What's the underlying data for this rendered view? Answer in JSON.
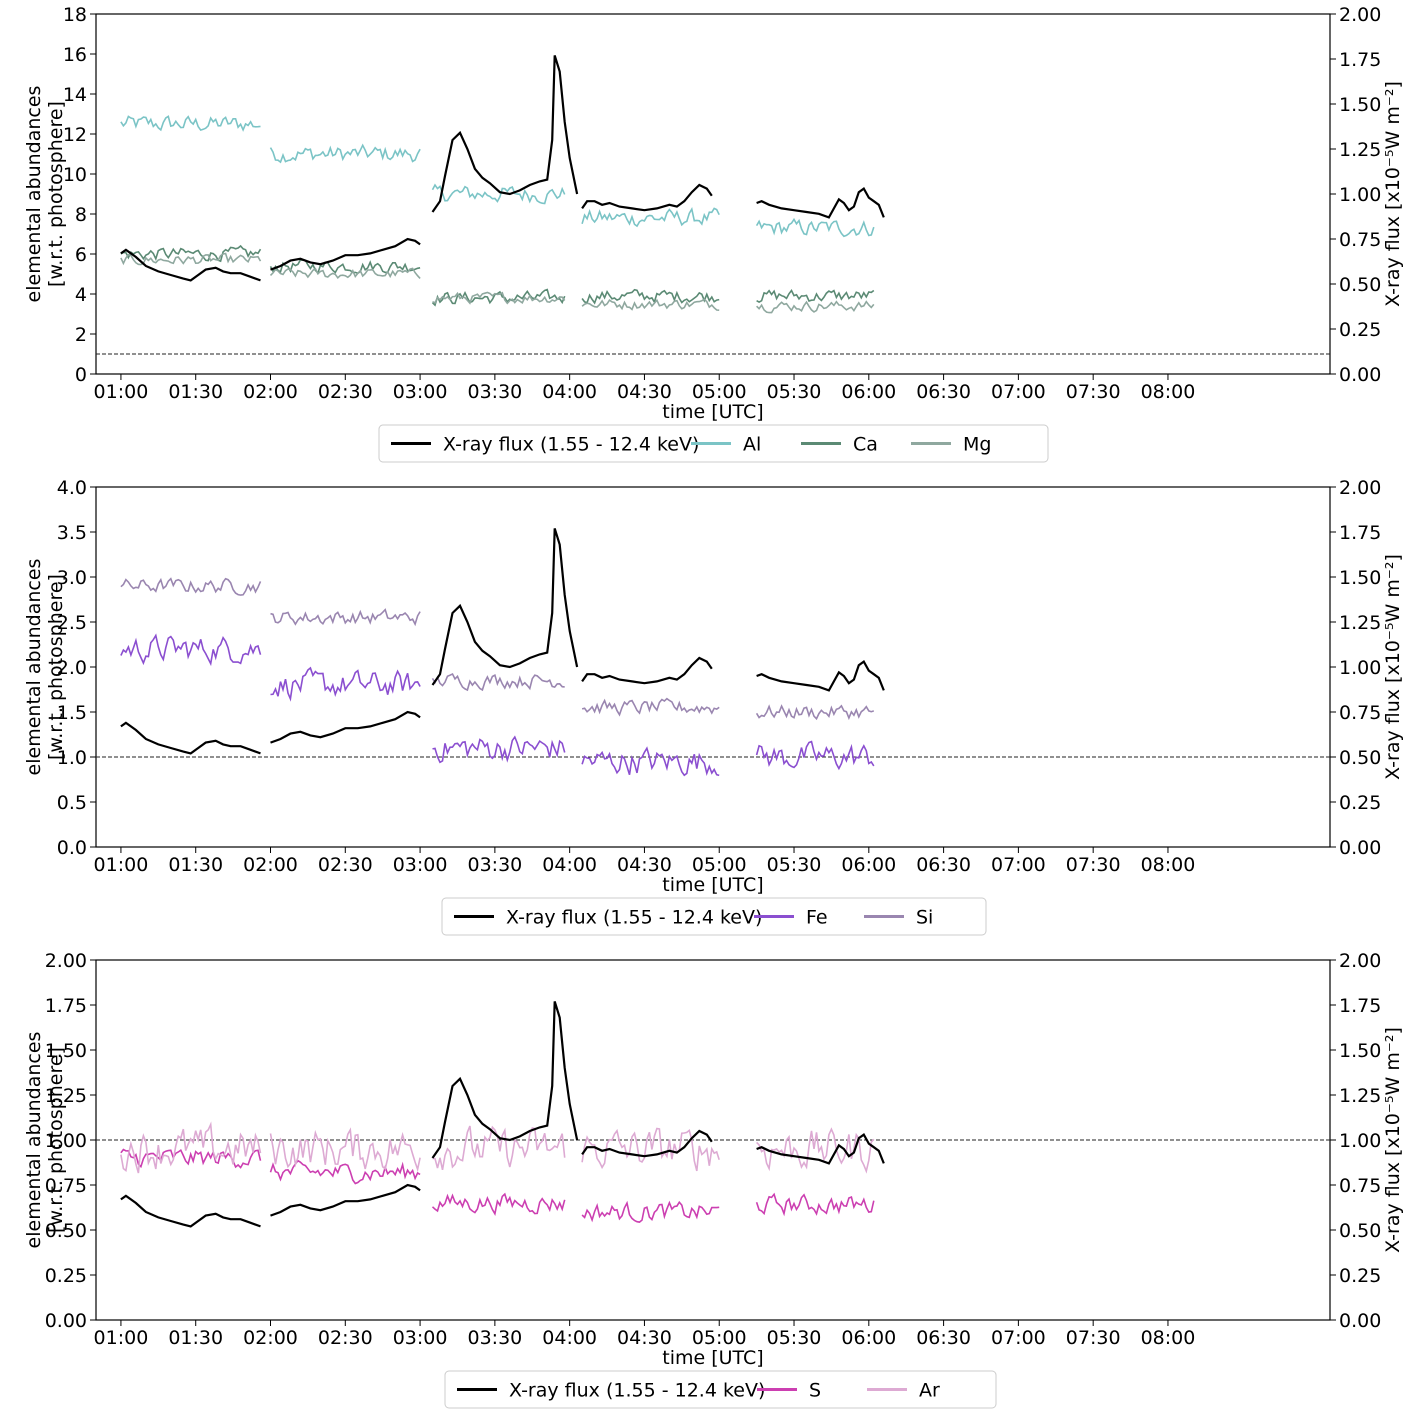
{
  "chart_data": [
    {
      "type": "line",
      "panel": "top",
      "xlabel": "time [UTC]",
      "ylabel_left": [
        "elemental abundances",
        "[w.r.t. photosphere]"
      ],
      "ylabel_right": "X-ray flux [x10⁻⁵W m⁻²]",
      "x_ticks": [
        "01:00",
        "01:30",
        "02:00",
        "02:30",
        "03:00",
        "03:30",
        "04:00",
        "04:30",
        "05:00",
        "05:30",
        "06:00",
        "06:30",
        "07:00",
        "07:30",
        "08:00"
      ],
      "xlim_minutes": [
        50,
        545
      ],
      "ylim_left": [
        0,
        18
      ],
      "yticks_left": [
        "0",
        "2",
        "4",
        "6",
        "8",
        "10",
        "12",
        "14",
        "16",
        "18"
      ],
      "ylim_right": [
        0,
        2
      ],
      "yticks_right": [
        "0.00",
        "0.25",
        "0.50",
        "0.75",
        "1.00",
        "1.25",
        "1.50",
        "1.75",
        "2.00"
      ],
      "reference_line_left": 1.0,
      "legend_position": "bottom-center",
      "segments_minutes": [
        [
          60,
          116
        ],
        [
          120,
          180
        ],
        [
          185,
          238
        ],
        [
          245,
          300
        ],
        [
          315,
          362
        ]
      ],
      "series": [
        {
          "name": "X-ray flux (1.55 - 12.4 keV)",
          "axis": "right",
          "color": "#000000",
          "values": [
            [
              [
                60,
                0.67
              ],
              [
                62,
                0.69
              ],
              [
                64,
                0.67
              ],
              [
                66,
                0.65
              ],
              [
                70,
                0.6
              ],
              [
                75,
                0.57
              ],
              [
                80,
                0.55
              ],
              [
                85,
                0.53
              ],
              [
                88,
                0.52
              ],
              [
                91,
                0.55
              ],
              [
                94,
                0.58
              ],
              [
                98,
                0.59
              ],
              [
                101,
                0.57
              ],
              [
                104,
                0.56
              ],
              [
                108,
                0.56
              ],
              [
                112,
                0.54
              ],
              [
                116,
                0.52
              ]
            ],
            [
              [
                120,
                0.58
              ],
              [
                124,
                0.6
              ],
              [
                128,
                0.63
              ],
              [
                132,
                0.64
              ],
              [
                136,
                0.62
              ],
              [
                140,
                0.61
              ],
              [
                145,
                0.63
              ],
              [
                150,
                0.66
              ],
              [
                155,
                0.66
              ],
              [
                160,
                0.67
              ],
              [
                165,
                0.69
              ],
              [
                170,
                0.71
              ],
              [
                175,
                0.75
              ],
              [
                178,
                0.74
              ],
              [
                180,
                0.72
              ]
            ],
            [
              [
                185,
                0.9
              ],
              [
                188,
                0.96
              ],
              [
                190,
                1.1
              ],
              [
                193,
                1.3
              ],
              [
                196,
                1.34
              ],
              [
                199,
                1.25
              ],
              [
                202,
                1.14
              ],
              [
                205,
                1.09
              ],
              [
                208,
                1.06
              ],
              [
                212,
                1.01
              ],
              [
                216,
                1.0
              ],
              [
                220,
                1.02
              ],
              [
                224,
                1.05
              ],
              [
                228,
                1.07
              ],
              [
                231,
                1.08
              ],
              [
                233,
                1.3
              ],
              [
                234,
                1.77
              ],
              [
                236,
                1.68
              ],
              [
                238,
                1.4
              ],
              [
                240,
                1.2
              ],
              [
                243,
                1.0
              ]
            ],
            [
              [
                245,
                0.92
              ],
              [
                247,
                0.96
              ],
              [
                250,
                0.96
              ],
              [
                253,
                0.94
              ],
              [
                256,
                0.95
              ],
              [
                260,
                0.93
              ],
              [
                265,
                0.92
              ],
              [
                270,
                0.91
              ],
              [
                275,
                0.92
              ],
              [
                280,
                0.94
              ],
              [
                283,
                0.93
              ],
              [
                286,
                0.96
              ],
              [
                289,
                1.01
              ],
              [
                292,
                1.05
              ],
              [
                295,
                1.03
              ],
              [
                297,
                0.99
              ]
            ],
            [
              [
                315,
                0.95
              ],
              [
                317,
                0.96
              ],
              [
                320,
                0.94
              ],
              [
                325,
                0.92
              ],
              [
                330,
                0.91
              ],
              [
                335,
                0.9
              ],
              [
                340,
                0.89
              ],
              [
                344,
                0.87
              ],
              [
                346,
                0.92
              ],
              [
                348,
                0.97
              ],
              [
                350,
                0.95
              ],
              [
                352,
                0.91
              ],
              [
                354,
                0.93
              ],
              [
                356,
                1.01
              ],
              [
                358,
                1.03
              ],
              [
                360,
                0.98
              ],
              [
                362,
                0.96
              ],
              [
                364,
                0.94
              ],
              [
                366,
                0.87
              ]
            ]
          ]
        },
        {
          "name": "Al",
          "axis": "left",
          "color": "#7bc4c6",
          "level": [
            12.5,
            11.0,
            9.0,
            7.8,
            7.3
          ],
          "noise": 1.3
        },
        {
          "name": "Ca",
          "axis": "left",
          "color": "#5b8a74",
          "level": [
            6.0,
            5.4,
            3.8,
            3.9,
            3.9
          ],
          "noise": 1.0
        },
        {
          "name": "Mg",
          "axis": "left",
          "color": "#8fa89f",
          "level": [
            5.7,
            5.0,
            3.8,
            3.5,
            3.4
          ],
          "noise": 0.8
        }
      ]
    },
    {
      "type": "line",
      "panel": "middle",
      "xlabel": "time [UTC]",
      "ylabel_left": [
        "elemental abundances",
        "[w.r.t. photosphere]"
      ],
      "ylabel_right": "X-ray flux [x10⁻⁵W m⁻²]",
      "x_ticks": [
        "01:00",
        "01:30",
        "02:00",
        "02:30",
        "03:00",
        "03:30",
        "04:00",
        "04:30",
        "05:00",
        "05:30",
        "06:00",
        "06:30",
        "07:00",
        "07:30",
        "08:00"
      ],
      "xlim_minutes": [
        50,
        545
      ],
      "ylim_left": [
        0,
        4
      ],
      "yticks_left": [
        "0.0",
        "0.5",
        "1.0",
        "1.5",
        "2.0",
        "2.5",
        "3.0",
        "3.5",
        "4.0"
      ],
      "ylim_right": [
        0,
        2
      ],
      "yticks_right": [
        "0.00",
        "0.25",
        "0.50",
        "0.75",
        "1.00",
        "1.25",
        "1.50",
        "1.75",
        "2.00"
      ],
      "reference_line_left": 1.0,
      "legend_position": "bottom-center",
      "series": [
        {
          "name": "X-ray flux (1.55 - 12.4 keV)",
          "axis": "right",
          "color": "#000000",
          "same_as_top": true
        },
        {
          "name": "Fe",
          "axis": "left",
          "color": "#8b4fd0",
          "level": [
            2.2,
            1.8,
            1.1,
            0.95,
            1.0
          ],
          "noise": 0.45
        },
        {
          "name": "Si",
          "axis": "left",
          "color": "#9a86b0",
          "level": [
            2.9,
            2.55,
            1.85,
            1.55,
            1.5
          ],
          "noise": 0.25
        }
      ]
    },
    {
      "type": "line",
      "panel": "bottom",
      "xlabel": "time [UTC]",
      "ylabel_left": [
        "elemental abundances",
        "[w.r.t. photosphere]"
      ],
      "ylabel_right": "X-ray flux [x10⁻⁵W m⁻²]",
      "x_ticks": [
        "01:00",
        "01:30",
        "02:00",
        "02:30",
        "03:00",
        "03:30",
        "04:00",
        "04:30",
        "05:00",
        "05:30",
        "06:00",
        "06:30",
        "07:00",
        "07:30",
        "08:00"
      ],
      "xlim_minutes": [
        50,
        545
      ],
      "ylim_left": [
        0,
        2
      ],
      "yticks_left": [
        "0.00",
        "0.25",
        "0.50",
        "0.75",
        "1.00",
        "1.25",
        "1.50",
        "1.75",
        "2.00"
      ],
      "ylim_right": [
        0,
        2
      ],
      "yticks_right": [
        "0.00",
        "0.25",
        "0.50",
        "0.75",
        "1.00",
        "1.25",
        "1.50",
        "1.75",
        "2.00"
      ],
      "reference_line_left": 1.0,
      "legend_position": "bottom-center",
      "series": [
        {
          "name": "X-ray flux (1.55 - 12.4 keV)",
          "axis": "right",
          "color": "#000000",
          "same_as_top": true
        },
        {
          "name": "S",
          "axis": "left",
          "color": "#cc3fb1",
          "level": [
            0.9,
            0.82,
            0.65,
            0.6,
            0.64
          ],
          "noise": 0.16
        },
        {
          "name": "Ar",
          "axis": "left",
          "color": "#ddaad3",
          "level": [
            0.95,
            0.95,
            0.95,
            0.95,
            0.95
          ],
          "noise": 0.35
        }
      ]
    }
  ]
}
